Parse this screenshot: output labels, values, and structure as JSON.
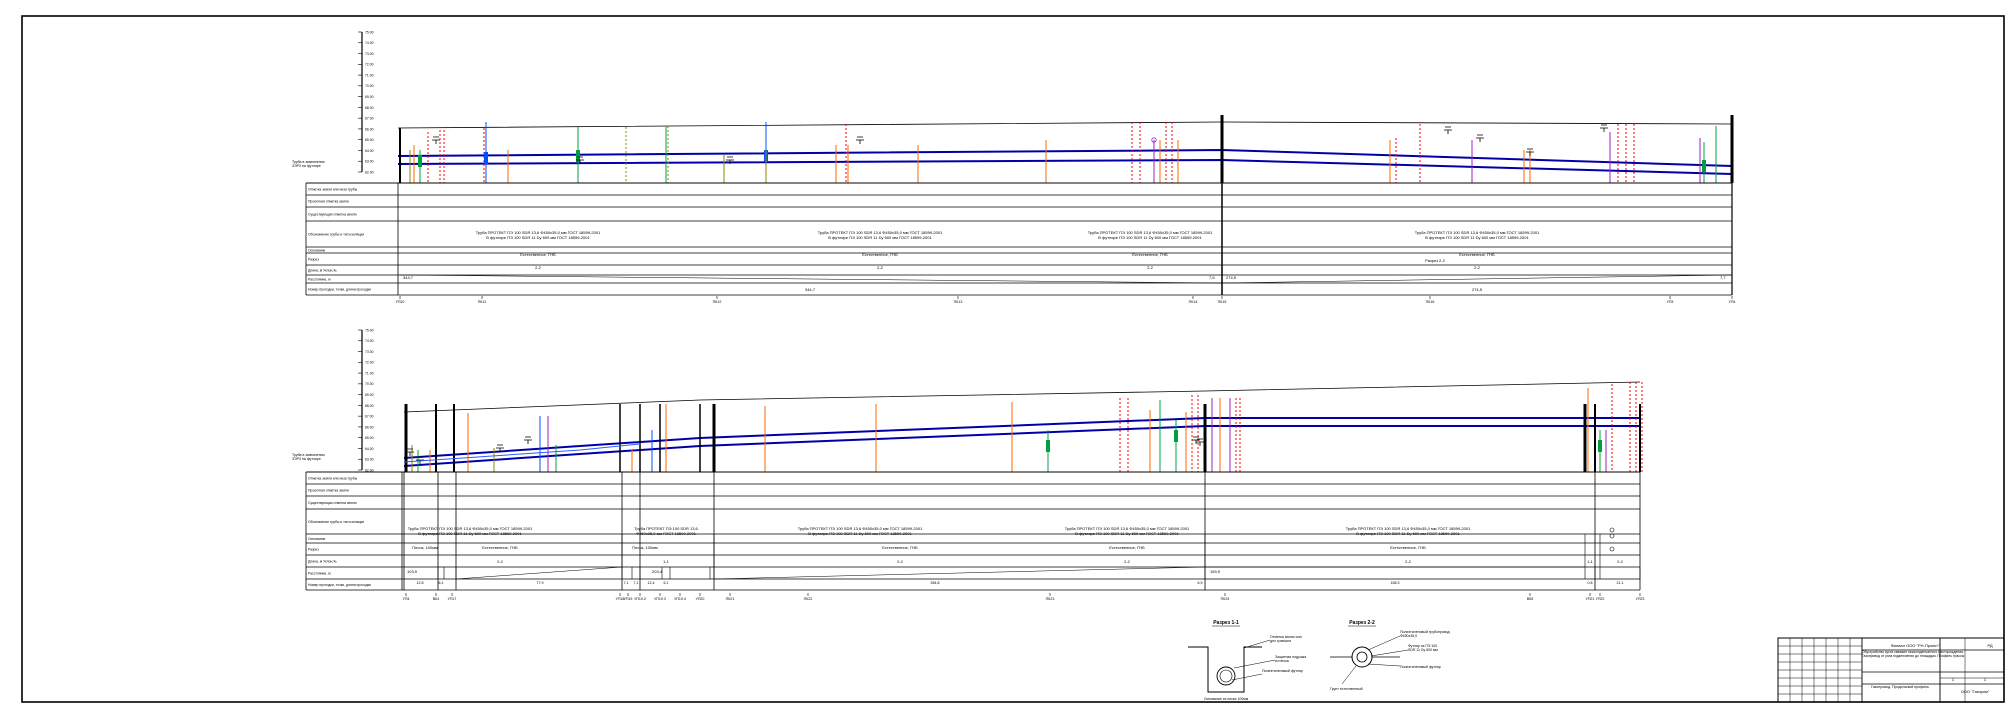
{
  "colors": {
    "pipe": "#0000a8",
    "pipe_light": "#2a5cff",
    "red": "#ff0000",
    "orange": "#ff6a00",
    "green": "#00a040",
    "purple": "#a020c0",
    "olive": "#8a8a00",
    "blue": "#0050ff",
    "line": "#000000"
  },
  "icons": [
    "crossing-marker-icon",
    "profile-tick-icon"
  ],
  "scale_labels": [
    "75.00",
    "74.00",
    "73.00",
    "72.00",
    "71.00",
    "70.00",
    "69.00",
    "68.00",
    "67.00",
    "66.00",
    "65.00",
    "64.00",
    "63.00",
    "62.00"
  ],
  "row_labels": [
    "Отметка земли или низа трубы",
    "Проектная отметка земли",
    "Существующая отметка земли",
    "Обозначение трубы и тип изоляции",
    "Основание",
    "Разрез",
    "Длина, м   Уклон,‰",
    "Расстояние, м",
    "Номер проходки, точки, длина проходки"
  ],
  "side_label_top": "Труба в заземлении\nЗЭРЗ на футляре",
  "profile1": {
    "pipe_spec": "Труба ПРОТЕКТ ПЭ 100 SDR 13,6 Ф450х35,0 мм ГОСТ 18599-2001\nВ футляре ПЭ 100 SDR 11 Dу 600 мм ГОСТ 18599-2001",
    "bases": [
      "Естественное, ГНБ",
      "Естественное, ГНБ",
      "Естественное, ГНБ",
      "Естественное, ГНБ"
    ],
    "sections": [
      "2-2",
      "2-2",
      "2-2",
      "2-2"
    ],
    "section_label": "Разрез 2-2",
    "lengths": [
      "344,7",
      "7,5",
      "274,5",
      "7,7"
    ],
    "distances": [
      "344,7",
      "274,5"
    ],
    "points": [
      "УП10",
      "ПК11",
      "ПК12",
      "ПК13",
      "ПК14",
      "ПК15",
      "ПК16",
      "УП3",
      "УП4"
    ]
  },
  "profile2": {
    "pipe_spec_long": "Труба ПРОТЕКТ ПЭ 100 SDR 13,6 Ф450х35,0 мм ГОСТ 18599-2001\nВ футляре ПЭ 100 SDR 11 Dу 600 мм ГОСТ 18599-2001",
    "pipe_spec_short": "Труба ПРОТЕКТ ПЭ 100 SDR 13,6\nФ450х35,0 мм ГОСТ 18599-2001",
    "bases": [
      "Песок, 100мм",
      "Естественное, ГНБ",
      "Песок, 100мм",
      "Естественное, ГНБ",
      "Естественное, ГНБ",
      "Естественное, ГНБ"
    ],
    "sections": [
      "2-2",
      "1-1",
      "2-2",
      "2-2",
      "2-2",
      "1-1",
      "2-2"
    ],
    "lengths_top": [
      "103,9",
      "203,4",
      "159,9"
    ],
    "distances": [
      "12,8",
      "6,1",
      "77,9",
      "7,1",
      "7,1",
      "12,4",
      "6,1",
      "284,8",
      "6,9",
      "158,3",
      "0,8",
      "21,1"
    ],
    "points": [
      "УП4",
      "ВК4",
      "УП17",
      "УП18",
      "УП19",
      "УП19.2",
      "УП19.3",
      "УП19.4",
      "УП20",
      "ПК21",
      "ПК22",
      "ПК23",
      "ПК24",
      "ВК5",
      "УП21",
      "УП22",
      "УП23"
    ]
  },
  "section_1_1": {
    "title": "Разрез 1-1",
    "notes": [
      "Отметка земли или\nдно траншеи",
      "Защитная подушка\nиз песка",
      "Полиэтиленовый футляр",
      "Основание из песка 100мм"
    ]
  },
  "section_2_2": {
    "title": "Разрез 2-2",
    "notes": [
      "Полиэтиленовый трубопровод\nФ450х35,0",
      "Футляр из ПЭ 100\nSDR 11 Dу 600 мм",
      "Полиэтиленовый футляр",
      "Грунт естественный"
    ]
  },
  "title_block": {
    "org": "Филиал ООО \"РН-Проект\"",
    "stage": "РД",
    "project": "Обустройство куста скважин газоконденсатного месторождения. Газопровод от узла подключения до площадки. Профиль трассы",
    "sheet_title": "Газопровод. Продольный профиль",
    "company": "ООО \"Газпром\"",
    "sheet": "1",
    "sheets": "1"
  }
}
